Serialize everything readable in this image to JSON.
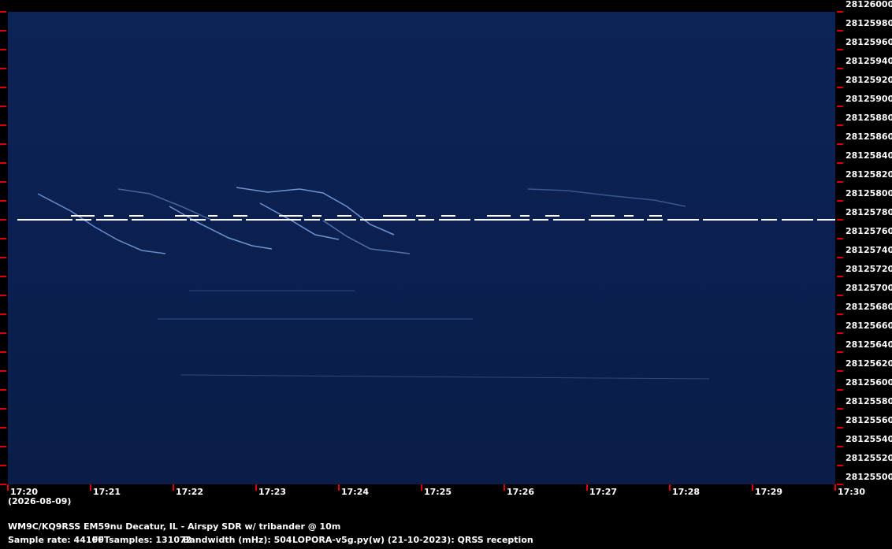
{
  "chart_data": {
    "type": "spectrogram",
    "subtitle": "(2026-08-09)",
    "categories": [
      "17:20",
      "17:21",
      "17:22",
      "17:23",
      "17:24",
      "17:25",
      "17:26",
      "17:27",
      "17:28",
      "17:29",
      "17:30"
    ],
    "ylim": [
      28125500,
      28126000
    ],
    "yticks": [
      28125500,
      28125520,
      28125540,
      28125560,
      28125580,
      28125600,
      28125620,
      28125640,
      28125660,
      28125680,
      28125700,
      28125720,
      28125740,
      28125760,
      28125780,
      28125800,
      28125820,
      28125840,
      28125860,
      28125880,
      28125900,
      28125920,
      28125940,
      28125960,
      28125980,
      28126000
    ],
    "tick_color": "#e00000",
    "footer": [
      "WM9C/KQ9RSS EM59nu Decatur, IL - Airspy SDR w/ tribander @ 10m",
      "Sample rate: 44100",
      "FFTsamples: 131072",
      "Bandwidth (mHz): 504",
      "LOPORA-v5g.py(w) (21-10-2023): QRSS reception"
    ]
  }
}
